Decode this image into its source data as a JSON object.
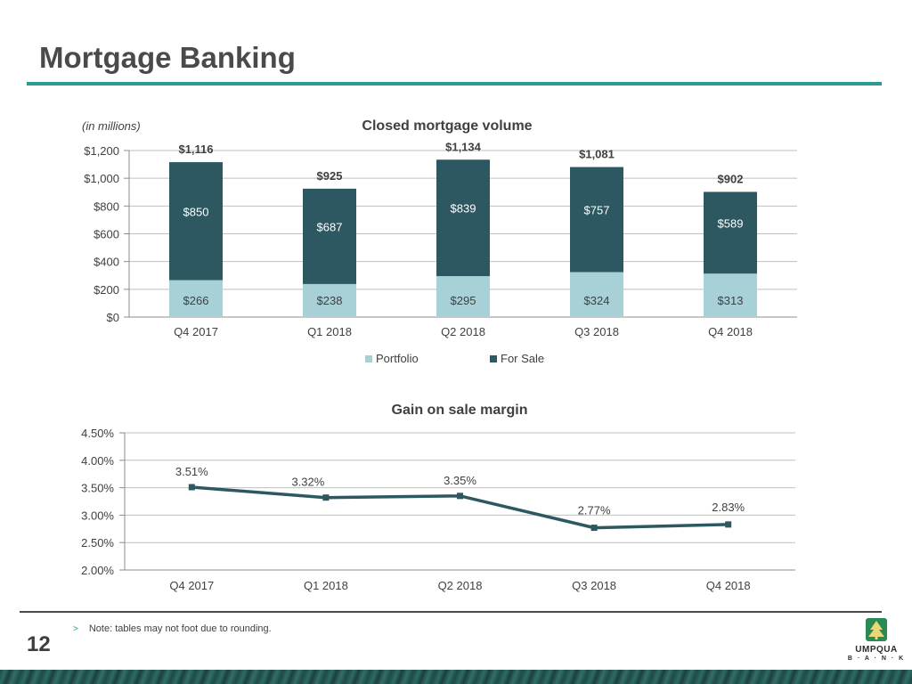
{
  "page": {
    "title": "Mortgage Banking",
    "page_number": "12",
    "note_bullet": ">",
    "note": "Note: tables may not foot due to rounding.",
    "logo": {
      "name": "UMPQUA",
      "sub": "B · A · N · K",
      "icon": "tree-logo-icon"
    }
  },
  "colors": {
    "accent": "#2a9c92",
    "for_sale": "#2d5862",
    "portfolio": "#a7d1d7",
    "line": "#2d5862"
  },
  "chart_data": [
    {
      "type": "bar",
      "stacked": true,
      "title": "Closed mortgage volume",
      "subtitle": "(in millions)",
      "categories": [
        "Q4 2017",
        "Q1 2018",
        "Q2 2018",
        "Q3 2018",
        "Q4 2018"
      ],
      "series": [
        {
          "name": "Portfolio",
          "values": [
            266,
            238,
            295,
            324,
            313
          ],
          "labels": [
            "$266",
            "$238",
            "$295",
            "$324",
            "$313"
          ]
        },
        {
          "name": "For Sale",
          "values": [
            850,
            687,
            839,
            757,
            589
          ],
          "labels": [
            "$850",
            "$687",
            "$839",
            "$757",
            "$589"
          ]
        }
      ],
      "totals": [
        1116,
        925,
        1134,
        1081,
        902
      ],
      "total_labels": [
        "$1,116",
        "$925",
        "$1,134",
        "$1,081",
        "$902"
      ],
      "ylim": [
        0,
        1200
      ],
      "yticks": [
        0,
        200,
        400,
        600,
        800,
        1000,
        1200
      ],
      "ytick_labels": [
        "$0",
        "$200",
        "$400",
        "$600",
        "$800",
        "$1,000",
        "$1,200"
      ],
      "grid": true,
      "legend": "bottom"
    },
    {
      "type": "line",
      "title": "Gain on sale margin",
      "categories": [
        "Q4 2017",
        "Q1 2018",
        "Q2 2018",
        "Q3 2018",
        "Q4 2018"
      ],
      "series": [
        {
          "values": [
            3.51,
            3.32,
            3.35,
            2.77,
            2.83
          ],
          "labels": [
            "3.51%",
            "3.32%",
            "3.35%",
            "2.77%",
            "2.83%"
          ]
        }
      ],
      "ylim": [
        2.0,
        4.5
      ],
      "yticks": [
        2.0,
        2.5,
        3.0,
        3.5,
        4.0,
        4.5
      ],
      "ytick_labels": [
        "2.00%",
        "2.50%",
        "3.00%",
        "3.50%",
        "4.00%",
        "4.50%"
      ],
      "grid": true,
      "legend": "none"
    }
  ]
}
